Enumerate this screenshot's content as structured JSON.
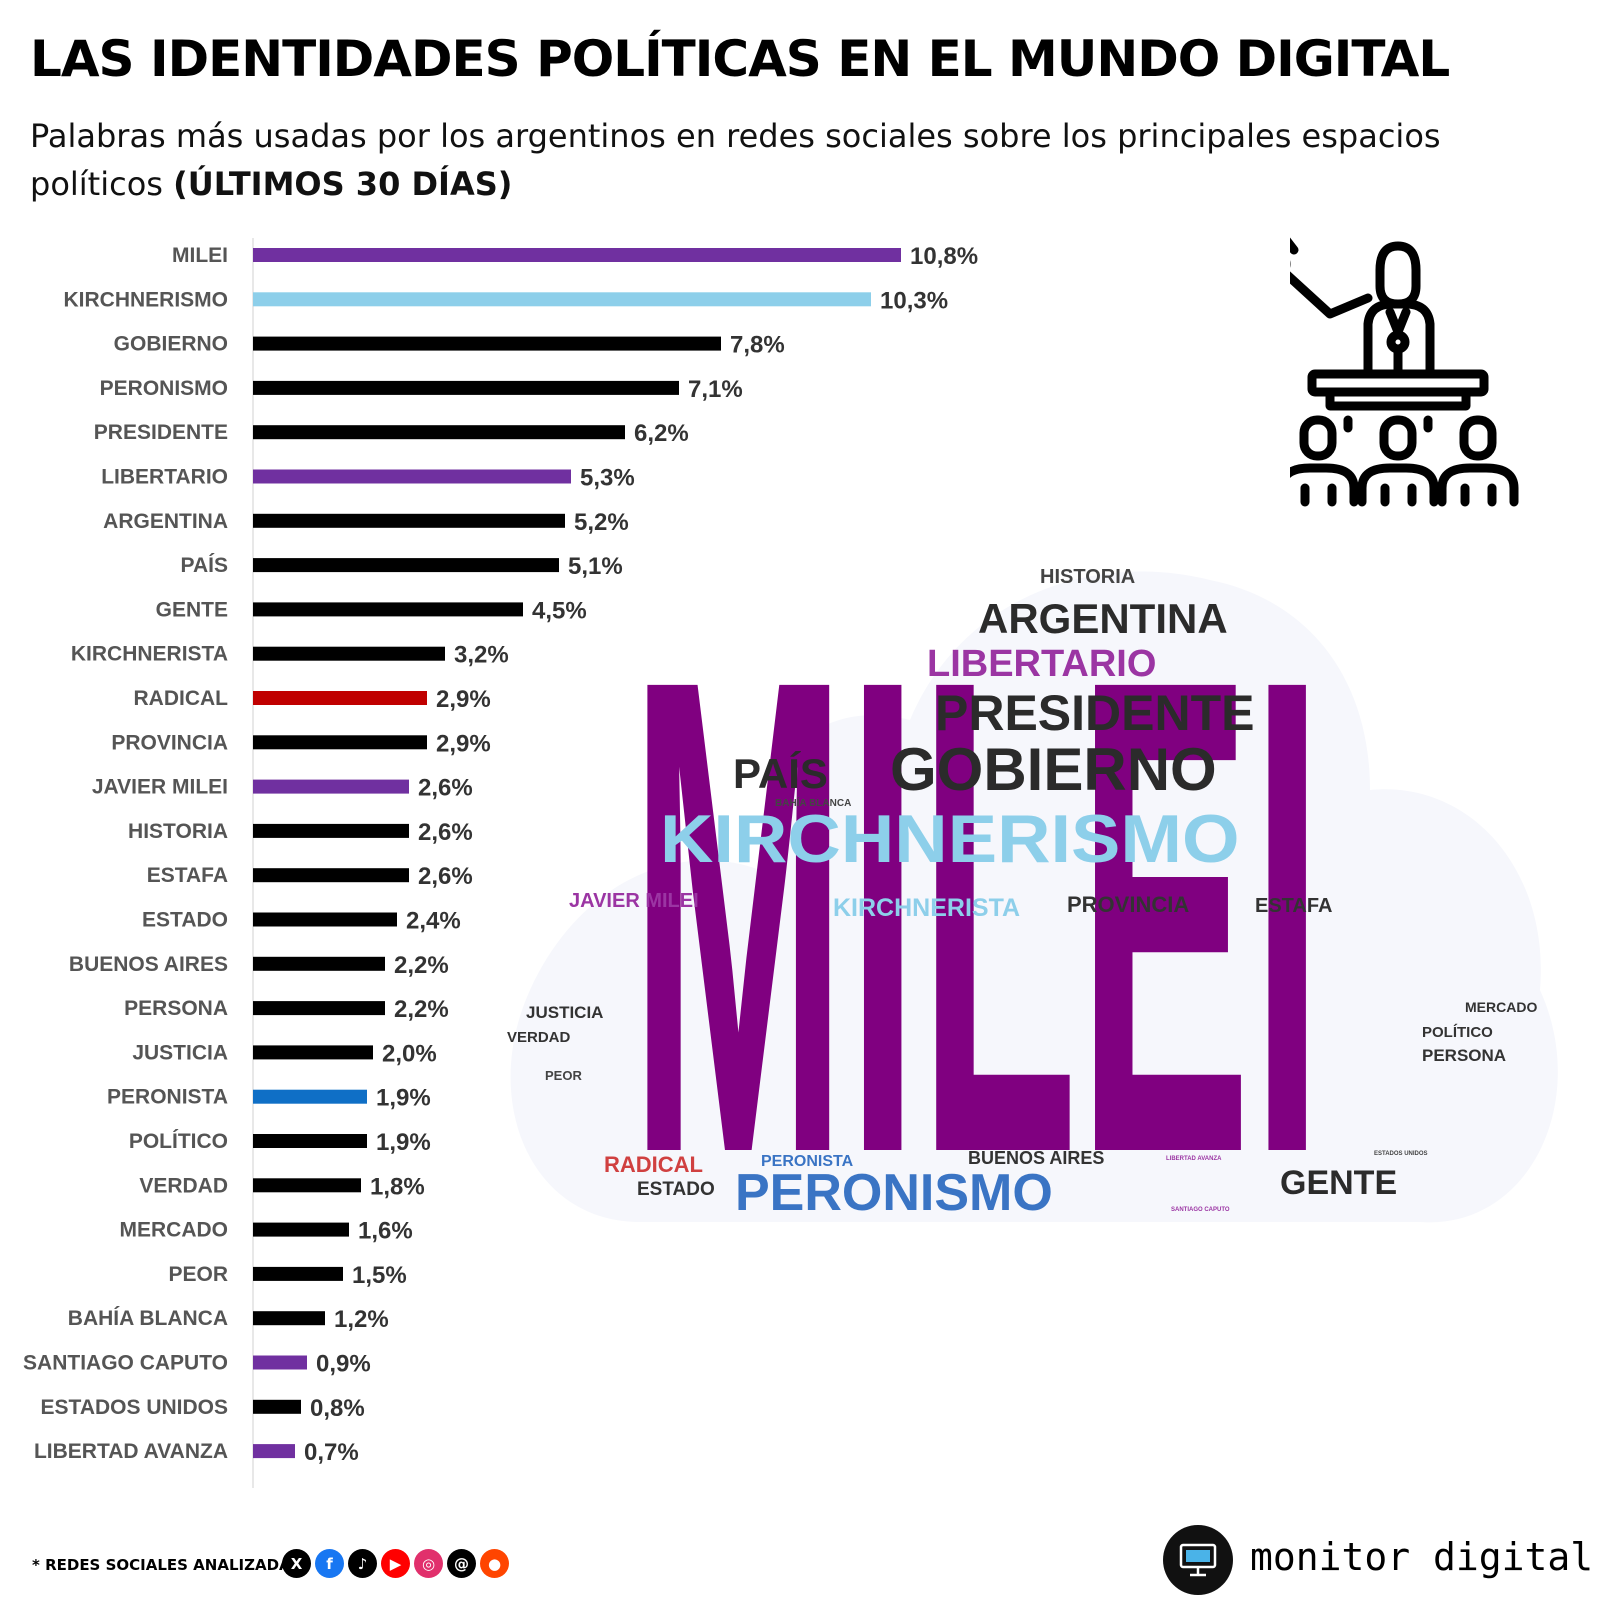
{
  "header": {
    "title": "LAS IDENTIDADES POLÍTICAS EN EL MUNDO DIGITAL",
    "subtitle": "Palabras más usadas por los argentinos en redes sociales sobre los principales espacios políticos",
    "subtitle_bold": "(ÚLTIMOS 30 DÍAS)"
  },
  "chart_data": {
    "type": "bar",
    "orientation": "horizontal",
    "categories": [
      "MILEI",
      "KIRCHNERISMO",
      "GOBIERNO",
      "PERONISMO",
      "PRESIDENTE",
      "LIBERTARIO",
      "ARGENTINA",
      "PAÍS",
      "GENTE",
      "KIRCHNERISTA",
      "RADICAL",
      "PROVINCIA",
      "JAVIER MILEI",
      "HISTORIA",
      "ESTAFA",
      "ESTADO",
      "BUENOS AIRES",
      "PERSONA",
      "JUSTICIA",
      "PERONISTA",
      "POLÍTICO",
      "VERDAD",
      "MERCADO",
      "PEOR",
      "BAHÍA BLANCA",
      "SANTIAGO CAPUTO",
      "ESTADOS UNIDOS",
      "LIBERTAD AVANZA"
    ],
    "values": [
      10.8,
      10.3,
      7.8,
      7.1,
      6.2,
      5.3,
      5.2,
      5.1,
      4.5,
      3.2,
      2.9,
      2.9,
      2.6,
      2.6,
      2.6,
      2.4,
      2.2,
      2.2,
      2.0,
      1.9,
      1.9,
      1.8,
      1.6,
      1.5,
      1.2,
      0.9,
      0.8,
      0.7
    ],
    "value_labels": [
      "10,8%",
      "10,3%",
      "7,8%",
      "7,1%",
      "6,2%",
      "5,3%",
      "5,2%",
      "5,1%",
      "4,5%",
      "3,2%",
      "2,9%",
      "2,9%",
      "2,6%",
      "2,6%",
      "2,6%",
      "2,4%",
      "2,2%",
      "2,2%",
      "2,0%",
      "1,9%",
      "1,9%",
      "1,8%",
      "1,6%",
      "1,5%",
      "1,2%",
      "0,9%",
      "0,8%",
      "0,7%"
    ],
    "bar_colors": [
      "#7030a0",
      "#8dcfea",
      "#000000",
      "#000000",
      "#000000",
      "#7030a0",
      "#000000",
      "#000000",
      "#000000",
      "#000000",
      "#c00000",
      "#000000",
      "#7030a0",
      "#000000",
      "#000000",
      "#000000",
      "#000000",
      "#000000",
      "#000000",
      "#0f6fc6",
      "#000000",
      "#000000",
      "#000000",
      "#000000",
      "#000000",
      "#7030a0",
      "#000000",
      "#7030a0"
    ],
    "unit": "%",
    "xlim": [
      0,
      11
    ],
    "title": "",
    "xlabel": "",
    "ylabel": "",
    "grid": false,
    "legend": "none"
  },
  "word_cloud": {
    "words": [
      {
        "text": "MILEI",
        "color": "#800080"
      },
      {
        "text": "KIRCHNERISMO",
        "color": "#8dcfea"
      },
      {
        "text": "GOBIERNO",
        "color": "#2b2b2b"
      },
      {
        "text": "PRESIDENTE",
        "color": "#2b2b2b"
      },
      {
        "text": "ARGENTINA",
        "color": "#2b2b2b"
      },
      {
        "text": "LIBERTARIO",
        "color": "#9b35a3"
      },
      {
        "text": "PERONISMO",
        "color": "#3a74c4"
      },
      {
        "text": "PAÍS",
        "color": "#2b2b2b"
      },
      {
        "text": "GENTE",
        "color": "#2b2b2b"
      },
      {
        "text": "HISTORIA",
        "color": "#444444"
      },
      {
        "text": "KIRCHNERISTA",
        "color": "#8dcfea"
      },
      {
        "text": "PROVINCIA",
        "color": "#333333"
      },
      {
        "text": "ESTAFA",
        "color": "#333333"
      },
      {
        "text": "JAVIER MILEI",
        "color": "#9b35a3"
      },
      {
        "text": "RADICAL",
        "color": "#d04040"
      },
      {
        "text": "ESTADO",
        "color": "#333333"
      },
      {
        "text": "PERONISTA",
        "color": "#3a74c4"
      },
      {
        "text": "BUENOS AIRES",
        "color": "#333333"
      },
      {
        "text": "JUSTICIA",
        "color": "#333333"
      },
      {
        "text": "VERDAD",
        "color": "#333333"
      },
      {
        "text": "PEOR",
        "color": "#444444"
      },
      {
        "text": "MERCADO",
        "color": "#333333"
      },
      {
        "text": "POLÍTICO",
        "color": "#333333"
      },
      {
        "text": "PERSONA",
        "color": "#333333"
      },
      {
        "text": "BAHÍA BLANCA",
        "color": "#444444"
      },
      {
        "text": "LIBERTAD AVANZA",
        "color": "#9b35a3"
      },
      {
        "text": "ESTADOS UNIDOS",
        "color": "#444444"
      },
      {
        "text": "SANTIAGO CAPUTO",
        "color": "#9b35a3"
      }
    ]
  },
  "footer": {
    "note": "* REDES SOCIALES ANALIZADAS",
    "social_icons": [
      {
        "name": "x-icon",
        "glyph": "X",
        "color": "#000000"
      },
      {
        "name": "facebook-icon",
        "glyph": "f",
        "color": "#1877f2"
      },
      {
        "name": "tiktok-icon",
        "glyph": "♪",
        "color": "#000000"
      },
      {
        "name": "youtube-icon",
        "glyph": "▶",
        "color": "#ff0000"
      },
      {
        "name": "instagram-icon",
        "glyph": "◎",
        "color": "#e1306c"
      },
      {
        "name": "threads-icon",
        "glyph": "@",
        "color": "#000000"
      },
      {
        "name": "reddit-icon",
        "glyph": "●",
        "color": "#ff4500"
      }
    ],
    "brand": "monitor digital"
  }
}
